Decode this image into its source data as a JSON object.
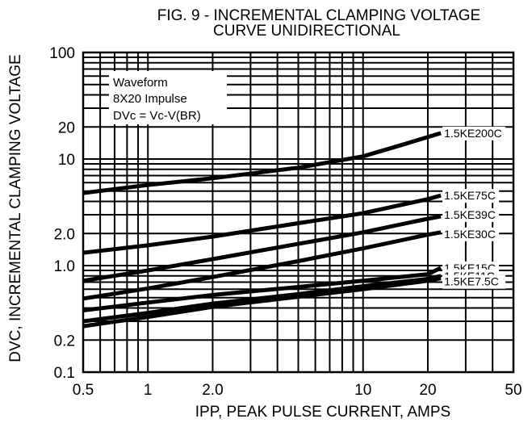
{
  "chart_data": {
    "type": "line",
    "title": "FIG. 9 - INCREMENTAL CLAMPING VOLTAGE",
    "subtitle": "CURVE UNIDIRECTIONAL",
    "xlabel": "IPP, PEAK PULSE CURRENT, AMPS",
    "ylabel": "DVC, INCREMENTAL CLAMPING VOLTAGE",
    "x_scale": "log",
    "y_scale": "log",
    "xlim": [
      0.5,
      50
    ],
    "ylim": [
      0.1,
      100
    ],
    "grid": true,
    "x_ticks": [
      {
        "value": 0.5,
        "label": "0.5"
      },
      {
        "value": 1,
        "label": "1"
      },
      {
        "value": 2,
        "label": "2.0"
      },
      {
        "value": 10,
        "label": "10"
      },
      {
        "value": 20,
        "label": "20"
      },
      {
        "value": 50,
        "label": "50"
      }
    ],
    "y_ticks": [
      {
        "value": 0.1,
        "label": "0.1"
      },
      {
        "value": 0.2,
        "label": "0.2"
      },
      {
        "value": 1,
        "label": "1.0"
      },
      {
        "value": 2,
        "label": "2.0"
      },
      {
        "value": 10,
        "label": "10"
      },
      {
        "value": 20,
        "label": "20"
      },
      {
        "value": 100,
        "label": "100"
      }
    ],
    "annotation": [
      "Waveform",
      "8X20 Impulse",
      "DVc = Vc-V(BR)"
    ],
    "series": [
      {
        "name": "1.5KE200C",
        "points": [
          [
            0.5,
            4.8
          ],
          [
            1,
            5.7
          ],
          [
            2,
            6.6
          ],
          [
            5,
            8.3
          ],
          [
            10,
            10.6
          ],
          [
            15,
            13.5
          ],
          [
            23,
            17.5
          ]
        ]
      },
      {
        "name": "1.5KE75C",
        "points": [
          [
            0.5,
            1.32
          ],
          [
            1,
            1.55
          ],
          [
            2,
            1.87
          ],
          [
            5,
            2.5
          ],
          [
            10,
            3.1
          ],
          [
            20,
            4.2
          ],
          [
            23,
            4.55
          ]
        ]
      },
      {
        "name": "1.5KE39C",
        "points": [
          [
            0.5,
            0.72
          ],
          [
            1,
            0.9
          ],
          [
            2,
            1.15
          ],
          [
            5,
            1.6
          ],
          [
            10,
            2.05
          ],
          [
            20,
            2.75
          ],
          [
            23,
            2.9
          ]
        ]
      },
      {
        "name": "1.5KE30C",
        "points": [
          [
            0.5,
            0.49
          ],
          [
            1,
            0.61
          ],
          [
            2,
            0.78
          ],
          [
            5,
            1.1
          ],
          [
            10,
            1.45
          ],
          [
            20,
            1.95
          ],
          [
            23,
            2.05
          ]
        ]
      },
      {
        "name": "1.5KE15C",
        "points": [
          [
            0.5,
            0.38
          ],
          [
            1,
            0.45
          ],
          [
            2,
            0.53
          ],
          [
            5,
            0.63
          ],
          [
            10,
            0.72
          ],
          [
            20,
            0.83
          ],
          [
            23,
            0.95
          ]
        ]
      },
      {
        "name": "1.5KE11C",
        "points": [
          [
            0.5,
            0.3
          ],
          [
            1,
            0.36
          ],
          [
            2,
            0.44
          ],
          [
            5,
            0.54
          ],
          [
            10,
            0.64
          ],
          [
            20,
            0.75
          ],
          [
            23,
            0.8
          ]
        ]
      },
      {
        "name": "1.5KE7.5C",
        "points": [
          [
            0.5,
            0.27
          ],
          [
            1,
            0.33
          ],
          [
            2,
            0.41
          ],
          [
            5,
            0.51
          ],
          [
            10,
            0.6
          ],
          [
            20,
            0.72
          ],
          [
            23,
            0.76
          ]
        ]
      }
    ]
  }
}
